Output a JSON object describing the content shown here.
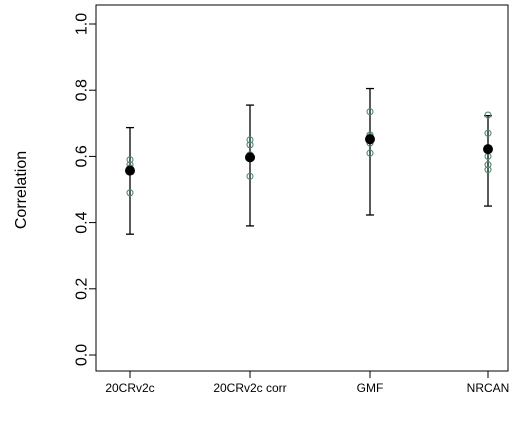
{
  "chart_data": {
    "type": "scatter",
    "ylabel": "Correlation",
    "xlabel": "",
    "categories": [
      "20CRv2c",
      "20CRv2c corr",
      "GMF",
      "NRCAN"
    ],
    "ylim": [
      0.0,
      1.0
    ],
    "y_ticks": [
      0.0,
      0.2,
      0.4,
      0.6,
      0.8,
      1.0
    ],
    "y_tick_labels": [
      "0.0",
      "0.2",
      "0.4",
      "0.6",
      "0.8",
      "1.0"
    ],
    "grid": false,
    "series": [
      {
        "name": "",
        "role": "mean",
        "values": [
          0.557,
          0.597,
          0.652,
          0.622
        ]
      },
      {
        "name": "",
        "role": "error-range",
        "low": [
          0.365,
          0.39,
          0.423,
          0.45
        ],
        "high": [
          0.687,
          0.755,
          0.805,
          0.723
        ]
      },
      {
        "name": "",
        "role": "members",
        "points": [
          [
            0.49,
            0.555,
            0.565,
            0.575,
            0.59
          ],
          [
            0.54,
            0.595,
            0.605,
            0.635,
            0.65
          ],
          [
            0.61,
            0.64,
            0.66,
            0.665,
            0.735
          ],
          [
            0.56,
            0.575,
            0.6,
            0.67,
            0.725
          ]
        ]
      }
    ],
    "colors": {
      "mean": "#000000",
      "members": "#4f8a6e",
      "error_bar": "#000000",
      "frame": "#000000"
    }
  }
}
